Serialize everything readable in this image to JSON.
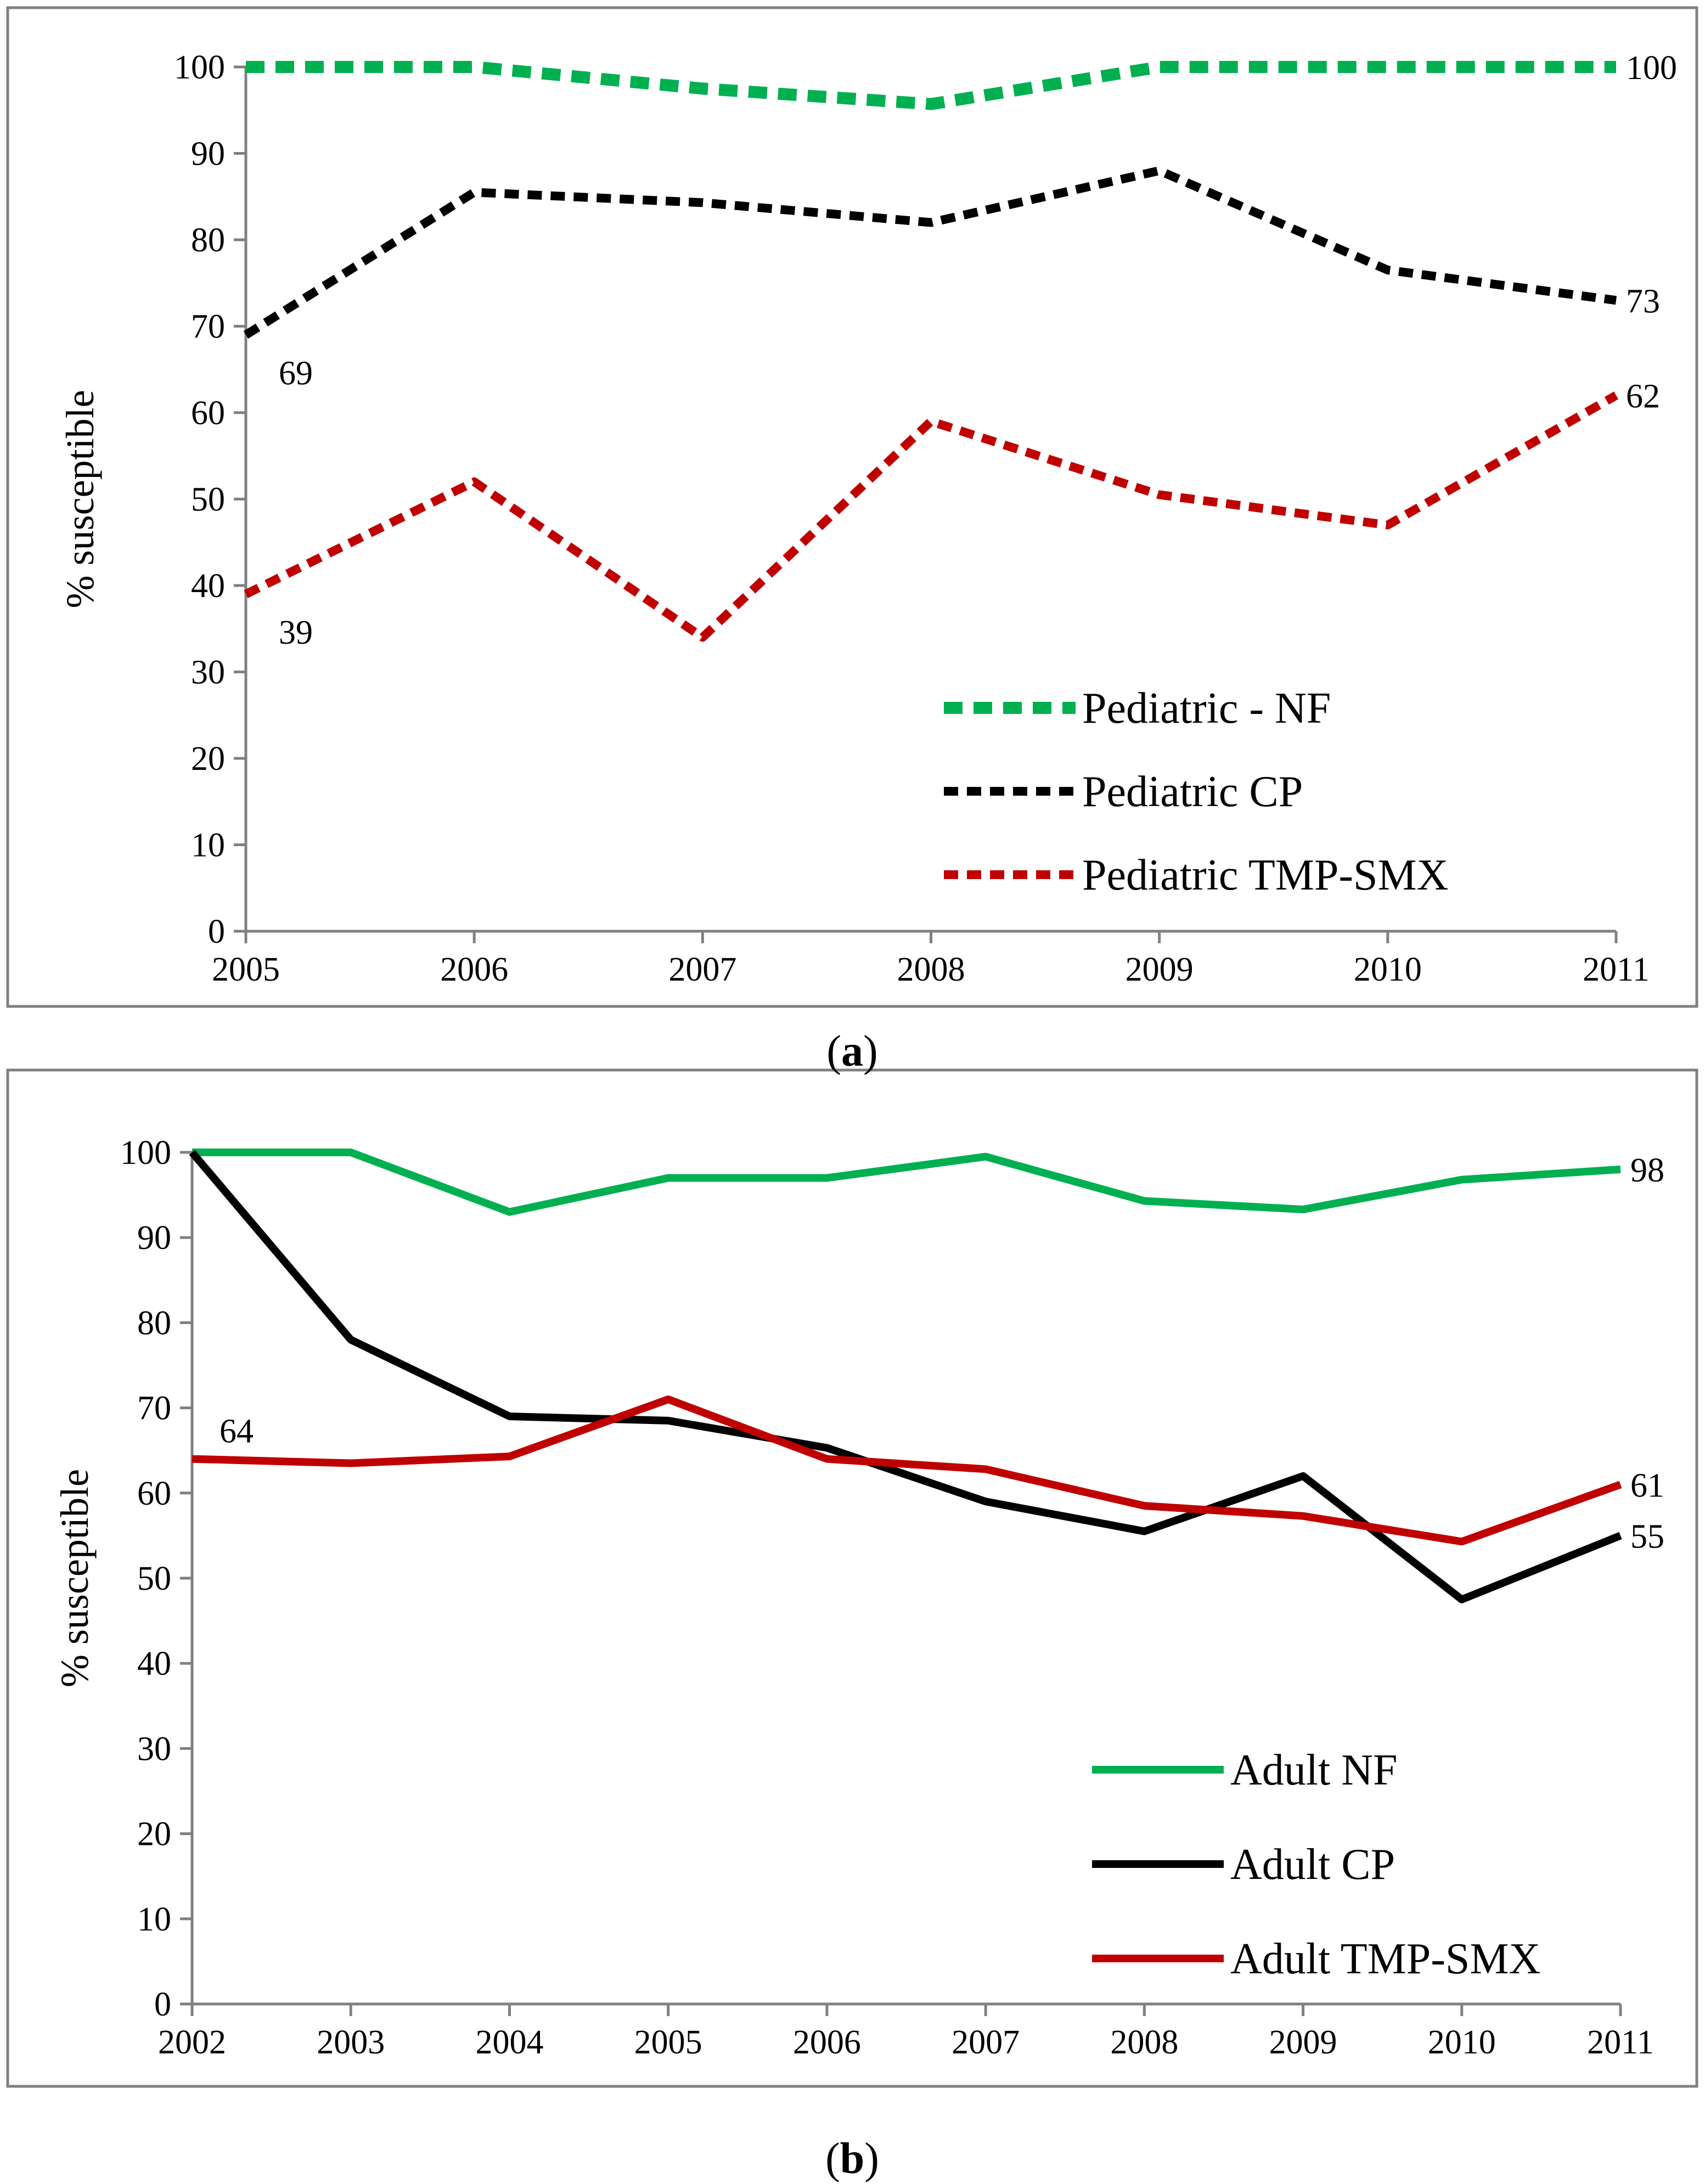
{
  "figure": {
    "caption_a": "a",
    "caption_b": "b"
  },
  "chart_data": [
    {
      "type": "line",
      "panel": "a",
      "title": "",
      "xlabel": "",
      "ylabel": "% susceptible",
      "x": [
        "2005",
        "2006",
        "2007",
        "2008",
        "2009",
        "2010",
        "2011"
      ],
      "ylim": [
        0,
        100
      ],
      "yticks": [
        "0",
        "10",
        "20",
        "30",
        "40",
        "50",
        "60",
        "70",
        "80",
        "90",
        "100"
      ],
      "grid": false,
      "legend_position": "bottom-right",
      "series": [
        {
          "name": "Pediatric - NF",
          "color": "#00b050",
          "dash": "dotted-thick",
          "values": [
            100,
            100,
            97.5,
            95.7,
            100,
            100,
            100
          ]
        },
        {
          "name": "Pediatric CP",
          "color": "#000000",
          "dash": "dotted",
          "values": [
            69,
            85.5,
            84.3,
            82,
            88,
            76.5,
            73
          ]
        },
        {
          "name": "Pediatric TMP-SMX",
          "color": "#c00000",
          "dash": "dotted",
          "values": [
            39,
            52,
            34,
            59,
            50.5,
            47,
            62
          ]
        }
      ],
      "annotations": [
        {
          "series": 1,
          "index": 0,
          "text": "69",
          "pos": "below-right"
        },
        {
          "series": 2,
          "index": 0,
          "text": "39",
          "pos": "below-right"
        },
        {
          "series": 0,
          "index": 6,
          "text": "100",
          "pos": "right"
        },
        {
          "series": 1,
          "index": 6,
          "text": "73",
          "pos": "right"
        },
        {
          "series": 2,
          "index": 6,
          "text": "62",
          "pos": "right"
        }
      ]
    },
    {
      "type": "line",
      "panel": "b",
      "title": "",
      "xlabel": "",
      "ylabel": "% susceptible",
      "x": [
        "2002",
        "2003",
        "2004",
        "2005",
        "2006",
        "2007",
        "2008",
        "2009",
        "2010",
        "2011"
      ],
      "ylim": [
        0,
        100
      ],
      "yticks": [
        "0",
        "10",
        "20",
        "30",
        "40",
        "50",
        "60",
        "70",
        "80",
        "90",
        "100"
      ],
      "grid": false,
      "legend_position": "bottom-right",
      "series": [
        {
          "name": "Adult NF",
          "color": "#00b050",
          "dash": "solid",
          "values": [
            100,
            100,
            93,
            97,
            97,
            99.5,
            94.3,
            93.3,
            96.8,
            98
          ]
        },
        {
          "name": "Adult CP",
          "color": "#000000",
          "dash": "solid",
          "values": [
            100,
            78,
            69,
            68.5,
            65.3,
            59,
            55.5,
            62,
            47.5,
            55
          ]
        },
        {
          "name": "Adult TMP-SMX",
          "color": "#c00000",
          "dash": "solid",
          "values": [
            64,
            63.5,
            64.3,
            71,
            64,
            62.8,
            58.5,
            57.3,
            54.3,
            61
          ]
        }
      ],
      "annotations": [
        {
          "series": 2,
          "index": 0,
          "text": "64",
          "pos": "above-right"
        },
        {
          "series": 0,
          "index": 9,
          "text": "98",
          "pos": "right"
        },
        {
          "series": 2,
          "index": 9,
          "text": "61",
          "pos": "right"
        },
        {
          "series": 1,
          "index": 9,
          "text": "55",
          "pos": "right"
        }
      ]
    }
  ]
}
